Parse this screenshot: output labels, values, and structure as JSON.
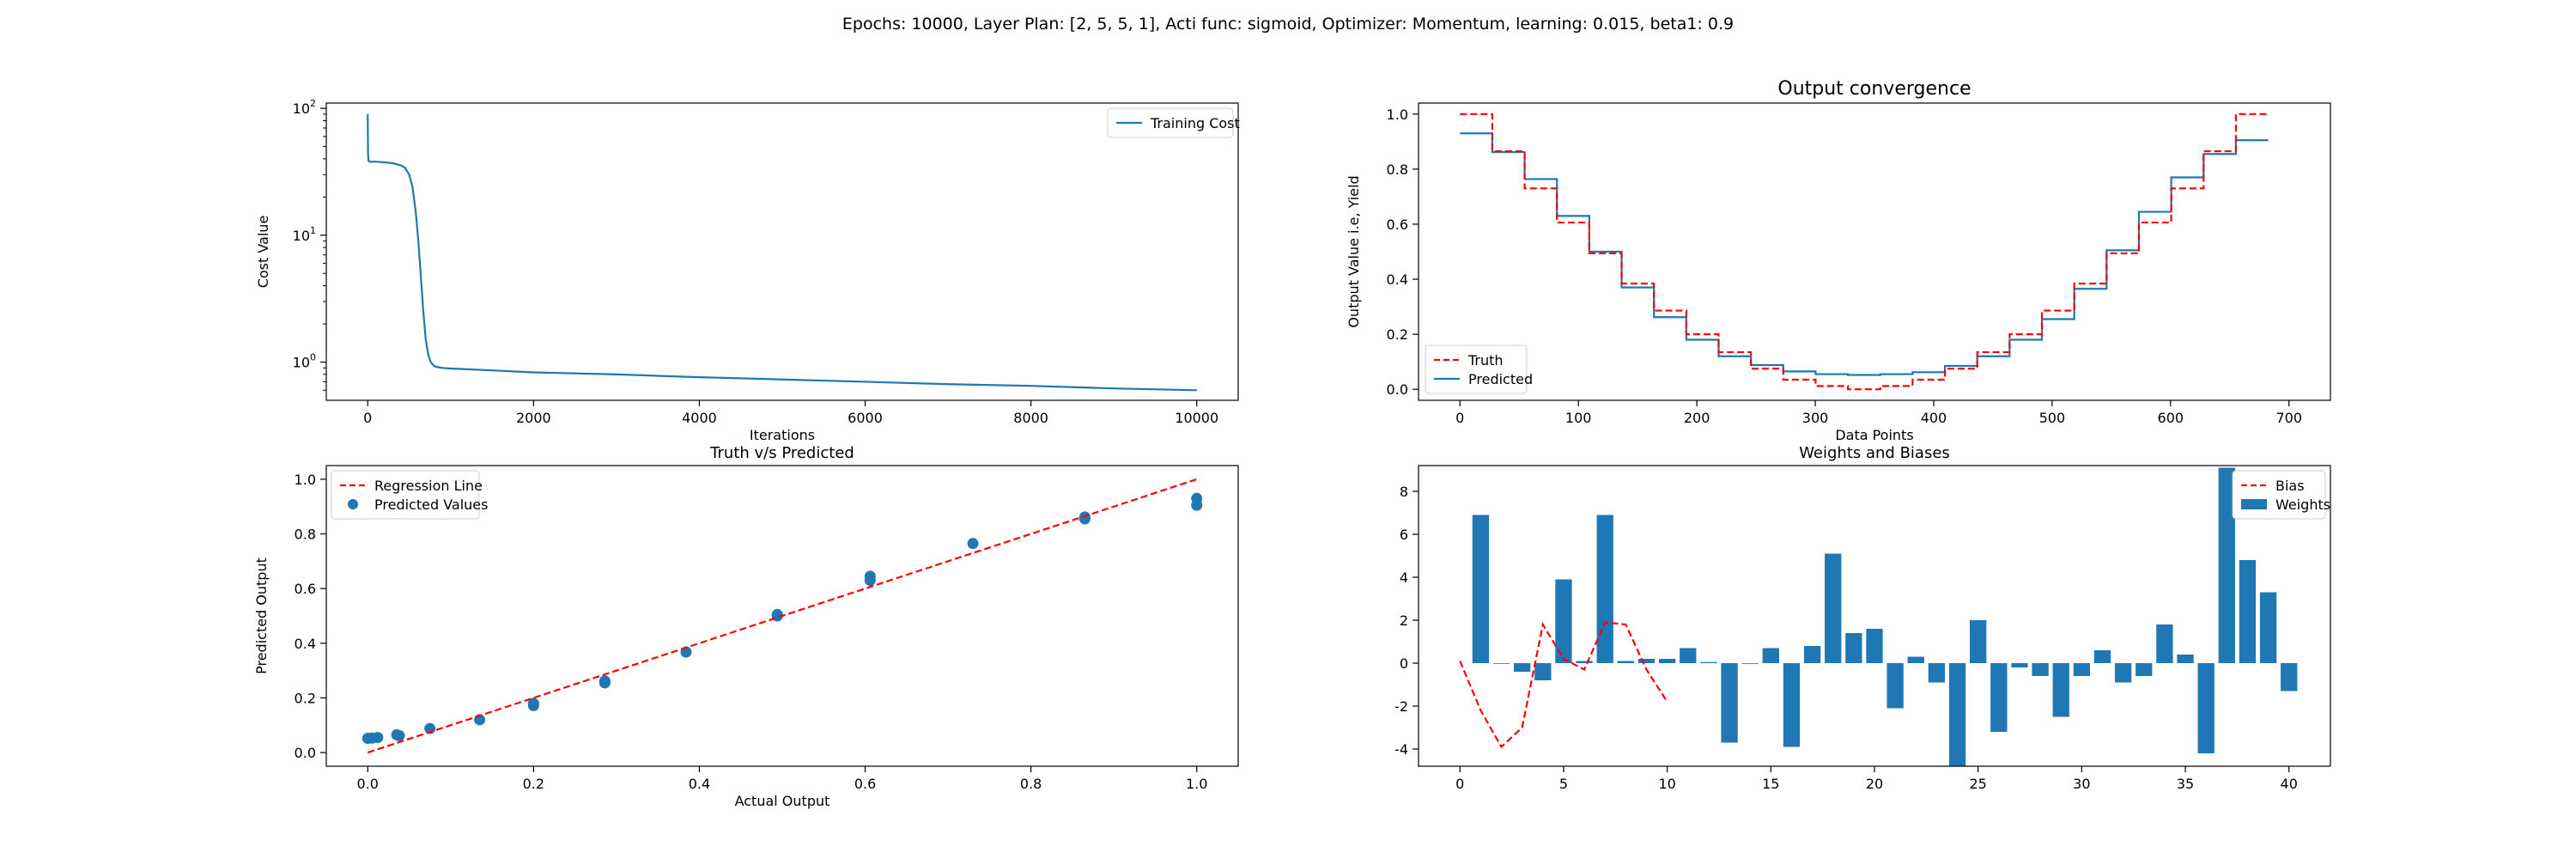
{
  "suptitle": "Epochs: 10000, Layer Plan: [2, 5, 5, 1], Acti func: sigmoid, Optimizer: Momentum, learning: 0.015, beta1: 0.9",
  "colors": {
    "blue": "#1f77b4",
    "red": "#ff0000"
  },
  "chart_data": [
    {
      "id": "cost",
      "type": "line",
      "title": "",
      "xlabel": "Iterations",
      "ylabel": "Cost Value",
      "yscale": "log",
      "xlim": [
        -500,
        10500
      ],
      "ylim": [
        0.5,
        110
      ],
      "xticks": [
        0,
        2000,
        4000,
        6000,
        8000,
        10000
      ],
      "yticks": [
        {
          "value": 1,
          "base": "10",
          "exp": "0"
        },
        {
          "value": 10,
          "base": "10",
          "exp": "1"
        },
        {
          "value": 100,
          "base": "10",
          "exp": "2"
        }
      ],
      "legend": {
        "position": "top-right",
        "entries": [
          "Training Cost"
        ]
      },
      "series": [
        {
          "name": "Training Cost",
          "x": [
            0,
            3,
            8,
            20,
            50,
            100,
            200,
            300,
            400,
            450,
            500,
            540,
            580,
            610,
            640,
            670,
            700,
            730,
            760,
            800,
            850,
            900,
            1000,
            1500,
            2000,
            3000,
            4000,
            5000,
            6000,
            7000,
            8000,
            9000,
            10000
          ],
          "y": [
            90,
            45,
            39,
            38,
            38,
            38,
            37.5,
            37,
            35.5,
            34,
            30,
            24,
            15,
            9,
            4.8,
            2.5,
            1.5,
            1.15,
            1.0,
            0.93,
            0.91,
            0.9,
            0.89,
            0.86,
            0.83,
            0.8,
            0.76,
            0.73,
            0.7,
            0.67,
            0.65,
            0.62,
            0.6
          ]
        }
      ]
    },
    {
      "id": "convergence",
      "type": "line",
      "title": "Output convergence",
      "xlabel": "Data Points",
      "ylabel": "Output Value i.e, Yield",
      "xlim": [
        -35,
        735
      ],
      "ylim": [
        -0.04,
        1.04
      ],
      "xticks": [
        0,
        100,
        200,
        300,
        400,
        500,
        600,
        700
      ],
      "yticks": [
        0.0,
        0.2,
        0.4,
        0.6,
        0.8,
        1.0
      ],
      "legend": {
        "position": "lower-left",
        "entries": [
          "Truth",
          "Predicted"
        ]
      },
      "step_width": 27.3,
      "series": [
        {
          "name": "Truth",
          "values": [
            1.0,
            0.865,
            0.73,
            0.606,
            0.494,
            0.384,
            0.286,
            0.2,
            0.135,
            0.075,
            0.035,
            0.012,
            0.0,
            0.012,
            0.035,
            0.075,
            0.135,
            0.2,
            0.286,
            0.384,
            0.494,
            0.606,
            0.73,
            0.865,
            1.0
          ]
        },
        {
          "name": "Predicted",
          "values": [
            0.93,
            0.862,
            0.764,
            0.63,
            0.5,
            0.37,
            0.262,
            0.18,
            0.12,
            0.088,
            0.065,
            0.055,
            0.052,
            0.055,
            0.062,
            0.085,
            0.12,
            0.18,
            0.255,
            0.365,
            0.505,
            0.645,
            0.77,
            0.855,
            0.905
          ]
        }
      ]
    },
    {
      "id": "truth_vs_pred",
      "type": "scatter",
      "title": "Truth v/s Predicted",
      "xlabel": "Actual Output",
      "ylabel": "Predicted Output",
      "xlim": [
        -0.05,
        1.05
      ],
      "ylim": [
        -0.05,
        1.05
      ],
      "xticks": [
        0.0,
        0.2,
        0.4,
        0.6,
        0.8,
        1.0
      ],
      "yticks": [
        0.0,
        0.2,
        0.4,
        0.6,
        0.8,
        1.0
      ],
      "legend": {
        "position": "top-left",
        "entries": [
          "Regression Line",
          "Predicted Values"
        ]
      },
      "line": {
        "name": "Regression Line",
        "x": [
          0,
          1
        ],
        "y": [
          0,
          1
        ]
      },
      "points": {
        "name": "Predicted Values",
        "x": [
          0.0,
          0.012,
          0.035,
          0.075,
          0.135,
          0.2,
          0.2,
          0.286,
          0.286,
          0.384,
          0.494,
          0.494,
          0.606,
          0.606,
          0.73,
          0.865,
          0.865,
          1.0,
          1.0,
          0.005,
          0.038
        ],
        "y": [
          0.052,
          0.055,
          0.065,
          0.088,
          0.12,
          0.18,
          0.172,
          0.262,
          0.255,
          0.368,
          0.5,
          0.505,
          0.63,
          0.645,
          0.765,
          0.855,
          0.862,
          0.93,
          0.905,
          0.053,
          0.062
        ]
      }
    },
    {
      "id": "weights_biases",
      "type": "bar",
      "title": "Weights and Biases",
      "xlabel": "",
      "ylabel": "",
      "xlim": [
        -2,
        42
      ],
      "ylim": [
        -4.8,
        9.2
      ],
      "xticks": [
        0,
        5,
        10,
        15,
        20,
        25,
        30,
        35,
        40
      ],
      "yticks": [
        -4,
        -2,
        0,
        2,
        4,
        6,
        8
      ],
      "legend": {
        "position": "top-right",
        "entries": [
          "Bias",
          "Weights"
        ]
      },
      "bias": {
        "name": "Bias",
        "x": [
          0,
          1,
          2,
          3,
          4,
          5,
          6,
          7,
          8,
          9,
          10
        ],
        "y": [
          0.1,
          -2.2,
          -3.9,
          -3.0,
          1.8,
          0.2,
          -0.3,
          1.9,
          1.8,
          -0.3,
          -1.8
        ]
      },
      "weights": {
        "name": "Weights",
        "x": [
          1,
          2,
          3,
          4,
          5,
          6,
          7,
          8,
          9,
          10,
          11,
          12,
          13,
          14,
          15,
          16,
          17,
          18,
          19,
          20,
          21,
          22,
          23,
          24,
          25,
          26,
          27,
          28,
          29,
          30,
          31,
          32,
          33,
          34,
          35,
          36,
          37,
          38,
          39,
          40
        ],
        "values": [
          6.9,
          0.0,
          -0.4,
          -0.8,
          3.9,
          0.1,
          6.9,
          0.1,
          0.2,
          0.2,
          0.7,
          0.05,
          -3.7,
          0.0,
          0.7,
          -3.9,
          0.8,
          5.1,
          1.4,
          1.6,
          -2.1,
          0.3,
          -0.9,
          -4.8,
          2.0,
          -3.2,
          -0.2,
          -0.6,
          -2.5,
          -0.6,
          0.6,
          -0.9,
          -0.6,
          1.8,
          0.4,
          -4.2,
          9.1,
          4.8,
          3.3,
          -1.3
        ]
      }
    }
  ]
}
